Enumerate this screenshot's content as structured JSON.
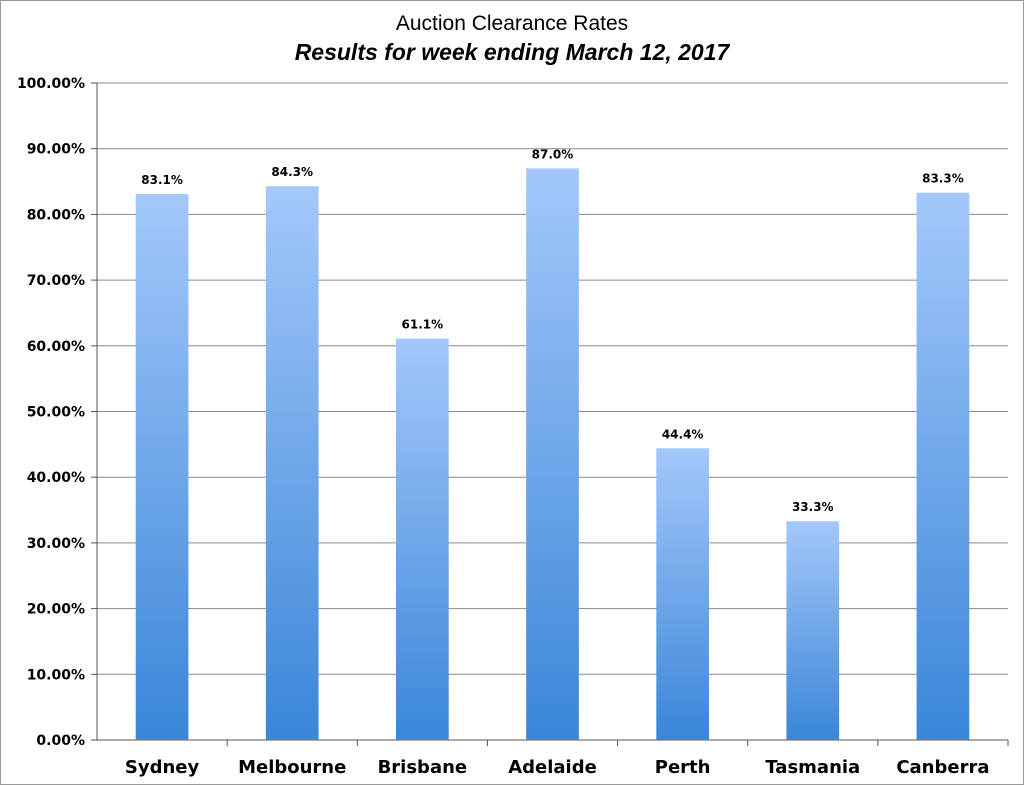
{
  "chart_data": {
    "type": "bar",
    "title": "Auction Clearance Rates",
    "subtitle": "Results for week ending March 12, 2017",
    "xlabel": "",
    "ylabel": "",
    "categories": [
      "Sydney",
      "Melbourne",
      "Brisbane",
      "Adelaide",
      "Perth",
      "Tasmania",
      "Canberra"
    ],
    "values": [
      83.1,
      84.3,
      61.1,
      87.0,
      44.4,
      33.3,
      83.3
    ],
    "data_labels": [
      "83.1%",
      "84.3%",
      "61.1%",
      "87.0%",
      "44.4%",
      "33.3%",
      "83.3%"
    ],
    "ylim": [
      0,
      100
    ],
    "yticks": [
      0,
      10,
      20,
      30,
      40,
      50,
      60,
      70,
      80,
      90,
      100
    ],
    "ytick_labels": [
      "0.00%",
      "10.00%",
      "20.00%",
      "30.00%",
      "40.00%",
      "50.00%",
      "60.00%",
      "70.00%",
      "80.00%",
      "90.00%",
      "100.00%"
    ],
    "grid": true,
    "legend": "none",
    "colors": {
      "bar_top": "#a4c8fb",
      "bar_bottom": "#3a86d8",
      "gridline": "#8a8a8a",
      "axis": "#555555"
    }
  }
}
